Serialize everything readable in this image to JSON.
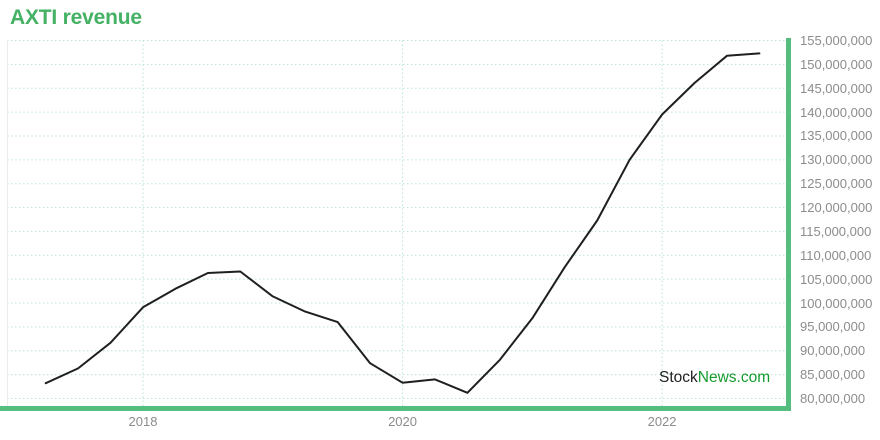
{
  "title": "AXTI revenue",
  "watermark": {
    "prefix": "Stock",
    "suffix": "News.com"
  },
  "colors": {
    "accent_green": "#45b164",
    "border_green": "#55bd7d",
    "grid_green": "#bce5d0",
    "label_gray": "#8c8c8c",
    "line_color": "#1f1f1f",
    "watermark_green": "#169b2f",
    "watermark_dark": "#1f1f1f"
  },
  "chart_data": {
    "type": "line",
    "title": "AXTI revenue",
    "x": [
      "2017 Q1",
      "2017 Q2",
      "2017 Q3",
      "2017 Q4",
      "2018 Q1",
      "2018 Q2",
      "2018 Q3",
      "2018 Q4",
      "2019 Q1",
      "2019 Q2",
      "2019 Q3",
      "2019 Q4",
      "2020 Q1",
      "2020 Q2",
      "2020 Q3",
      "2020 Q4",
      "2021 Q1",
      "2021 Q2",
      "2021 Q3",
      "2021 Q4",
      "2022 Q1",
      "2022 Q2",
      "2022 Q3"
    ],
    "series": [
      {
        "name": "AXTI revenue",
        "values": [
          83200000,
          86300000,
          91700000,
          99100000,
          103000000,
          106300000,
          106600000,
          101400000,
          98200000,
          96000000,
          87400000,
          83300000,
          84000000,
          81200000,
          88100000,
          96800000,
          107500000,
          117300000,
          130000000,
          139500000,
          146100000,
          151800000,
          152300000
        ]
      }
    ],
    "x_ticks": [
      {
        "label": "2018",
        "index": 3
      },
      {
        "label": "2020",
        "index": 11
      },
      {
        "label": "2022",
        "index": 19
      }
    ],
    "y_ticks": [
      {
        "label": "155,000,000",
        "value": 155000000
      },
      {
        "label": "150,000,000",
        "value": 150000000
      },
      {
        "label": "145,000,000",
        "value": 145000000
      },
      {
        "label": "140,000,000",
        "value": 140000000
      },
      {
        "label": "135,000,000",
        "value": 135000000
      },
      {
        "label": "130,000,000",
        "value": 130000000
      },
      {
        "label": "125,000,000",
        "value": 125000000
      },
      {
        "label": "120,000,000",
        "value": 120000000
      },
      {
        "label": "115,000,000",
        "value": 115000000
      },
      {
        "label": "110,000,000",
        "value": 110000000
      },
      {
        "label": "105,000,000",
        "value": 105000000
      },
      {
        "label": "100,000,000",
        "value": 100000000
      },
      {
        "label": "95,000,000",
        "value": 95000000
      },
      {
        "label": "90,000,000",
        "value": 90000000
      },
      {
        "label": "85,000,000",
        "value": 85000000
      },
      {
        "label": "80,000,000",
        "value": 80000000
      }
    ],
    "ylim": [
      80000000,
      155000000
    ],
    "grid": "dotted",
    "legend": "none"
  }
}
